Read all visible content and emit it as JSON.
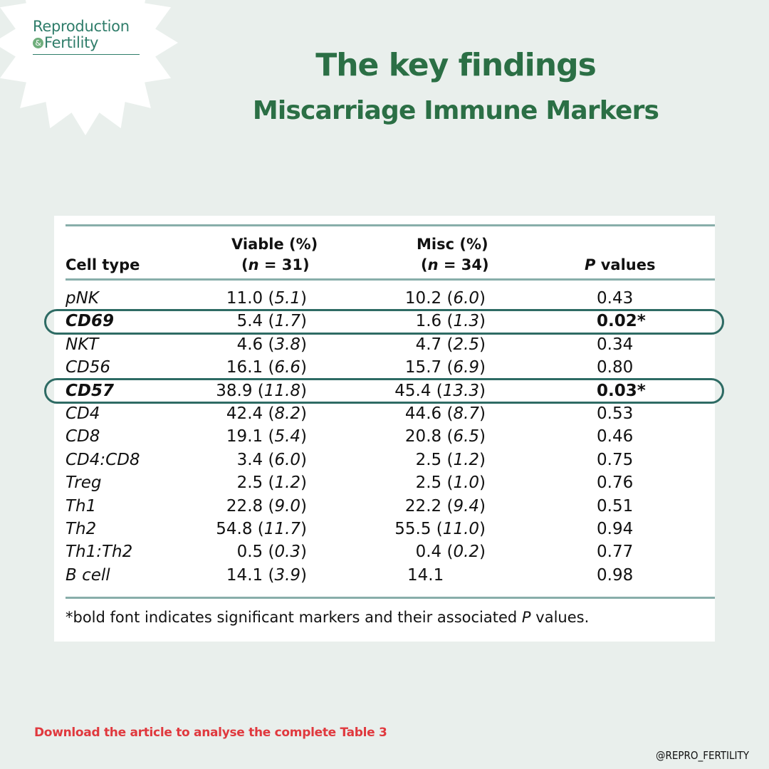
{
  "brand": {
    "line1": "Reproduction",
    "line2": "Fertility",
    "amp_glyph": "&",
    "accent": "#2f7d6a"
  },
  "heading": {
    "title": "The key findings",
    "subtitle": "Miscarriage Immune Markers",
    "color": "#2b6f45"
  },
  "table": {
    "headers": {
      "cell_type": "Cell type",
      "viable_1": "Viable (%)",
      "viable_n": "n",
      "viable_eq": " = 31)",
      "misc_1": "Misc (%)",
      "misc_n": "n",
      "misc_eq": " = 34)",
      "p_letter": "P",
      "p_rest": " values"
    },
    "rows": [
      {
        "cell": "pNK",
        "viable": "11.0",
        "viable_sd": "5.1",
        "misc": "10.2",
        "misc_sd": "6.0",
        "p": "0.43",
        "sig": false
      },
      {
        "cell": "CD69",
        "viable": "5.4",
        "viable_sd": "1.7",
        "misc": "1.6",
        "misc_sd": "1.3",
        "p": "0.02*",
        "sig": true
      },
      {
        "cell": "NKT",
        "viable": "4.6",
        "viable_sd": "3.8",
        "misc": "4.7",
        "misc_sd": "2.5",
        "p": "0.34",
        "sig": false
      },
      {
        "cell": "CD56",
        "viable": "16.1",
        "viable_sd": "6.6",
        "misc": "15.7",
        "misc_sd": "6.9",
        "p": "0.80",
        "sig": false
      },
      {
        "cell": "CD57",
        "viable": "38.9",
        "viable_sd": "11.8",
        "misc": "45.4",
        "misc_sd": "13.3",
        "p": "0.03*",
        "sig": true
      },
      {
        "cell": "CD4",
        "viable": "42.4",
        "viable_sd": "8.2",
        "misc": "44.6",
        "misc_sd": "8.7",
        "p": "0.53",
        "sig": false
      },
      {
        "cell": "CD8",
        "viable": "19.1",
        "viable_sd": "5.4",
        "misc": "20.8",
        "misc_sd": "6.5",
        "p": "0.46",
        "sig": false
      },
      {
        "cell": "CD4:CD8",
        "viable": "3.4",
        "viable_sd": "6.0",
        "misc": "2.5",
        "misc_sd": "1.2",
        "p": "0.75",
        "sig": false
      },
      {
        "cell": "Treg",
        "viable": "2.5",
        "viable_sd": "1.2",
        "misc": "2.5",
        "misc_sd": "1.0",
        "p": "0.76",
        "sig": false
      },
      {
        "cell": "Th1",
        "viable": "22.8",
        "viable_sd": "9.0",
        "misc": "22.2",
        "misc_sd": "9.4",
        "p": "0.51",
        "sig": false
      },
      {
        "cell": "Th2",
        "viable": "54.8",
        "viable_sd": "11.7",
        "misc": "55.5",
        "misc_sd": "11.0",
        "p": "0.94",
        "sig": false
      },
      {
        "cell": "Th1:Th2",
        "viable": "0.5",
        "viable_sd": "0.3",
        "misc": "0.4",
        "misc_sd": "0.2",
        "p": "0.77",
        "sig": false
      },
      {
        "cell": "B cell",
        "viable": "14.1",
        "viable_sd": "3.9",
        "misc": "14.1",
        "misc_sd": "",
        "p": "0.98",
        "sig": false
      }
    ],
    "footnote_pre": "*bold font indicates significant markers and their associated ",
    "footnote_p": "P",
    "footnote_post": " values."
  },
  "cta": {
    "text": "Download the article to analyse the complete Table 3",
    "color": "#e0393e"
  },
  "handle": "@REPRO_FERTILITY"
}
